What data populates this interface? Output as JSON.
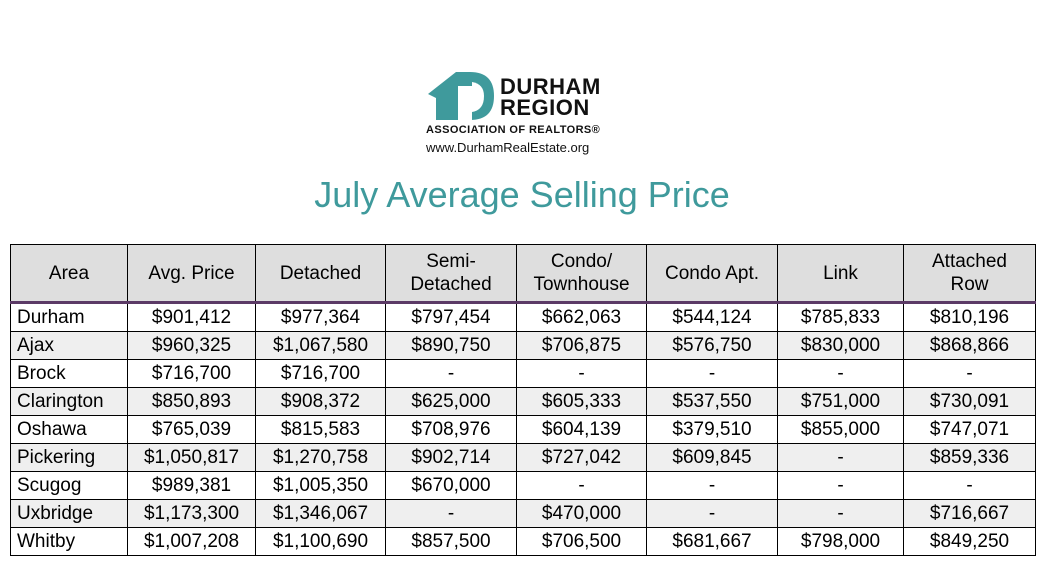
{
  "logo": {
    "name_line1": "DURHAM",
    "name_line2": "REGION",
    "association": "ASSOCIATION OF REALTORS®",
    "website": "www.DurhamRealEstate.org",
    "color": "#3f9a9c"
  },
  "title": "July Average Selling Price",
  "table": {
    "headers": [
      "Area",
      "Avg. Price",
      "Detached",
      "Semi-\nDetached",
      "Condo/\nTownhouse",
      "Condo Apt.",
      "Link",
      "Attached\nRow"
    ],
    "rows": [
      [
        "Durham",
        "$901,412",
        "$977,364",
        "$797,454",
        "$662,063",
        "$544,124",
        "$785,833",
        "$810,196"
      ],
      [
        "Ajax",
        "$960,325",
        "$1,067,580",
        "$890,750",
        "$706,875",
        "$576,750",
        "$830,000",
        "$868,866"
      ],
      [
        "Brock",
        "$716,700",
        "$716,700",
        "-",
        "-",
        "-",
        "-",
        "-"
      ],
      [
        "Clarington",
        "$850,893",
        "$908,372",
        "$625,000",
        "$605,333",
        "$537,550",
        "$751,000",
        "$730,091"
      ],
      [
        "Oshawa",
        "$765,039",
        "$815,583",
        "$708,976",
        "$604,139",
        "$379,510",
        "$855,000",
        "$747,071"
      ],
      [
        "Pickering",
        "$1,050,817",
        "$1,270,758",
        "$902,714",
        "$727,042",
        "$609,845",
        "-",
        "$859,336"
      ],
      [
        "Scugog",
        "$989,381",
        "$1,005,350",
        "$670,000",
        "-",
        "-",
        "-",
        "-"
      ],
      [
        "Uxbridge",
        "$1,173,300",
        "$1,346,067",
        "-",
        "$470,000",
        "-",
        "-",
        "$716,667"
      ],
      [
        "Whitby",
        "$1,007,208",
        "$1,100,690",
        "$857,500",
        "$706,500",
        "$681,667",
        "$798,000",
        "$849,250"
      ]
    ]
  }
}
